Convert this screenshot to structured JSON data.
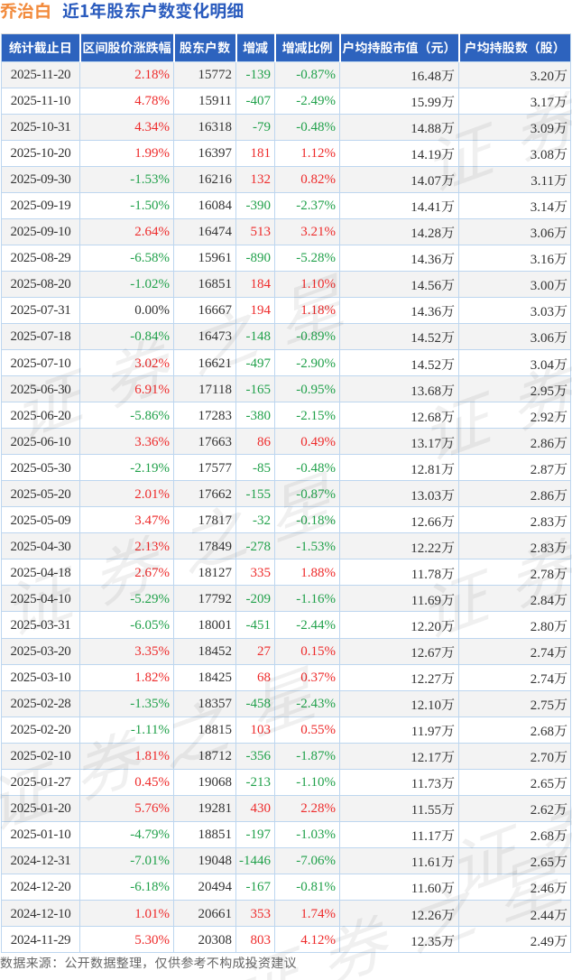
{
  "title": {
    "stock_name": "乔治白",
    "subtitle": "近1年股东户数变化明细"
  },
  "watermark": {
    "text": "证券之星"
  },
  "table": {
    "headers": [
      "统计截止日",
      "区间股价涨跌幅",
      "股东户数",
      "增减",
      "增减比例",
      "户均持股市值（元）",
      "户均持股数（股）"
    ],
    "rows": [
      [
        "2025-11-20",
        "2.18%",
        "15772",
        "-139",
        "-0.87%",
        "16.48万",
        "3.20万"
      ],
      [
        "2025-11-10",
        "4.78%",
        "15911",
        "-407",
        "-2.49%",
        "15.99万",
        "3.17万"
      ],
      [
        "2025-10-31",
        "4.34%",
        "16318",
        "-79",
        "-0.48%",
        "14.88万",
        "3.09万"
      ],
      [
        "2025-10-20",
        "1.99%",
        "16397",
        "181",
        "1.12%",
        "14.19万",
        "3.08万"
      ],
      [
        "2025-09-30",
        "-1.53%",
        "16216",
        "132",
        "0.82%",
        "14.07万",
        "3.11万"
      ],
      [
        "2025-09-19",
        "-1.50%",
        "16084",
        "-390",
        "-2.37%",
        "14.41万",
        "3.14万"
      ],
      [
        "2025-09-10",
        "2.64%",
        "16474",
        "513",
        "3.21%",
        "14.28万",
        "3.06万"
      ],
      [
        "2025-08-29",
        "-6.58%",
        "15961",
        "-890",
        "-5.28%",
        "14.36万",
        "3.16万"
      ],
      [
        "2025-08-20",
        "-1.02%",
        "16851",
        "184",
        "1.10%",
        "14.56万",
        "3.00万"
      ],
      [
        "2025-07-31",
        "0.00%",
        "16667",
        "194",
        "1.18%",
        "14.36万",
        "3.03万"
      ],
      [
        "2025-07-18",
        "-0.84%",
        "16473",
        "-148",
        "-0.89%",
        "14.52万",
        "3.06万"
      ],
      [
        "2025-07-10",
        "3.02%",
        "16621",
        "-497",
        "-2.90%",
        "14.52万",
        "3.04万"
      ],
      [
        "2025-06-30",
        "6.91%",
        "17118",
        "-165",
        "-0.95%",
        "13.68万",
        "2.95万"
      ],
      [
        "2025-06-20",
        "-5.86%",
        "17283",
        "-380",
        "-2.15%",
        "12.68万",
        "2.92万"
      ],
      [
        "2025-06-10",
        "3.36%",
        "17663",
        "86",
        "0.49%",
        "13.17万",
        "2.86万"
      ],
      [
        "2025-05-30",
        "-2.19%",
        "17577",
        "-85",
        "-0.48%",
        "12.81万",
        "2.87万"
      ],
      [
        "2025-05-20",
        "2.01%",
        "17662",
        "-155",
        "-0.87%",
        "13.03万",
        "2.86万"
      ],
      [
        "2025-05-09",
        "3.47%",
        "17817",
        "-32",
        "-0.18%",
        "12.66万",
        "2.83万"
      ],
      [
        "2025-04-30",
        "2.13%",
        "17849",
        "-278",
        "-1.53%",
        "12.22万",
        "2.83万"
      ],
      [
        "2025-04-18",
        "2.67%",
        "18127",
        "335",
        "1.88%",
        "11.78万",
        "2.78万"
      ],
      [
        "2025-04-10",
        "-5.29%",
        "17792",
        "-209",
        "-1.16%",
        "11.69万",
        "2.84万"
      ],
      [
        "2025-03-31",
        "-6.05%",
        "18001",
        "-451",
        "-2.44%",
        "12.20万",
        "2.80万"
      ],
      [
        "2025-03-20",
        "3.35%",
        "18452",
        "27",
        "0.15%",
        "12.67万",
        "2.74万"
      ],
      [
        "2025-03-10",
        "1.82%",
        "18425",
        "68",
        "0.37%",
        "12.27万",
        "2.74万"
      ],
      [
        "2025-02-28",
        "-1.35%",
        "18357",
        "-458",
        "-2.43%",
        "12.10万",
        "2.75万"
      ],
      [
        "2025-02-20",
        "-1.11%",
        "18815",
        "103",
        "0.55%",
        "11.97万",
        "2.68万"
      ],
      [
        "2025-02-10",
        "1.81%",
        "18712",
        "-356",
        "-1.87%",
        "12.17万",
        "2.70万"
      ],
      [
        "2025-01-27",
        "0.45%",
        "19068",
        "-213",
        "-1.10%",
        "11.73万",
        "2.65万"
      ],
      [
        "2025-01-20",
        "5.76%",
        "19281",
        "430",
        "2.28%",
        "11.55万",
        "2.62万"
      ],
      [
        "2025-01-10",
        "-4.79%",
        "18851",
        "-197",
        "-1.03%",
        "11.17万",
        "2.68万"
      ],
      [
        "2024-12-31",
        "-7.01%",
        "19048",
        "-1446",
        "-7.06%",
        "11.61万",
        "2.65万"
      ],
      [
        "2024-12-20",
        "-6.18%",
        "20494",
        "-167",
        "-0.81%",
        "11.60万",
        "2.46万"
      ],
      [
        "2024-12-10",
        "1.01%",
        "20661",
        "353",
        "1.74%",
        "12.26万",
        "2.44万"
      ],
      [
        "2024-11-29",
        "5.30%",
        "20308",
        "803",
        "4.12%",
        "12.35万",
        "2.49万"
      ]
    ]
  },
  "footer": {
    "text": "数据来源：公开数据整理，仅供参考不构成投资建议"
  },
  "colors": {
    "up": "#ee2b2b",
    "down": "#21a14b",
    "neutral": "#333333",
    "header_bg": "#2d63be",
    "title_stock": "#f28b3d",
    "title_subtitle": "#2b5cbe",
    "border": "#bdd6ef",
    "row_alt_bg": "#f3f3f3",
    "footer_text": "#666666"
  },
  "chart_data": {
    "type": "table",
    "title": "乔治白 近1年股东户数变化明细",
    "columns": [
      "统计截止日",
      "区间股价涨跌幅",
      "股东户数",
      "增减",
      "增减比例",
      "户均持股市值（元）",
      "户均持股数（股）"
    ],
    "rows": [
      [
        "2025-11-20",
        "2.18%",
        "15772",
        "-139",
        "-0.87%",
        "16.48万",
        "3.20万"
      ],
      [
        "2025-11-10",
        "4.78%",
        "15911",
        "-407",
        "-2.49%",
        "15.99万",
        "3.17万"
      ],
      [
        "2025-10-31",
        "4.34%",
        "16318",
        "-79",
        "-0.48%",
        "14.88万",
        "3.09万"
      ],
      [
        "2025-10-20",
        "1.99%",
        "16397",
        "181",
        "1.12%",
        "14.19万",
        "3.08万"
      ],
      [
        "2025-09-30",
        "-1.53%",
        "16216",
        "132",
        "0.82%",
        "14.07万",
        "3.11万"
      ],
      [
        "2025-09-19",
        "-1.50%",
        "16084",
        "-390",
        "-2.37%",
        "14.41万",
        "3.14万"
      ],
      [
        "2025-09-10",
        "2.64%",
        "16474",
        "513",
        "3.21%",
        "14.28万",
        "3.06万"
      ],
      [
        "2025-08-29",
        "-6.58%",
        "15961",
        "-890",
        "-5.28%",
        "14.36万",
        "3.16万"
      ],
      [
        "2025-08-20",
        "-1.02%",
        "16851",
        "184",
        "1.10%",
        "14.56万",
        "3.00万"
      ],
      [
        "2025-07-31",
        "0.00%",
        "16667",
        "194",
        "1.18%",
        "14.36万",
        "3.03万"
      ],
      [
        "2025-07-18",
        "-0.84%",
        "16473",
        "-148",
        "-0.89%",
        "14.52万",
        "3.06万"
      ],
      [
        "2025-07-10",
        "3.02%",
        "16621",
        "-497",
        "-2.90%",
        "14.52万",
        "3.04万"
      ],
      [
        "2025-06-30",
        "6.91%",
        "17118",
        "-165",
        "-0.95%",
        "13.68万",
        "2.95万"
      ],
      [
        "2025-06-20",
        "-5.86%",
        "17283",
        "-380",
        "-2.15%",
        "12.68万",
        "2.92万"
      ],
      [
        "2025-06-10",
        "3.36%",
        "17663",
        "86",
        "0.49%",
        "13.17万",
        "2.86万"
      ],
      [
        "2025-05-30",
        "-2.19%",
        "17577",
        "-85",
        "-0.48%",
        "12.81万",
        "2.87万"
      ],
      [
        "2025-05-20",
        "2.01%",
        "17662",
        "-155",
        "-0.87%",
        "13.03万",
        "2.86万"
      ],
      [
        "2025-05-09",
        "3.47%",
        "17817",
        "-32",
        "-0.18%",
        "12.66万",
        "2.83万"
      ],
      [
        "2025-04-30",
        "2.13%",
        "17849",
        "-278",
        "-1.53%",
        "12.22万",
        "2.83万"
      ],
      [
        "2025-04-18",
        "2.67%",
        "18127",
        "335",
        "1.88%",
        "11.78万",
        "2.78万"
      ],
      [
        "2025-04-10",
        "-5.29%",
        "17792",
        "-209",
        "-1.16%",
        "11.69万",
        "2.84万"
      ],
      [
        "2025-03-31",
        "-6.05%",
        "18001",
        "-451",
        "-2.44%",
        "12.20万",
        "2.80万"
      ],
      [
        "2025-03-20",
        "3.35%",
        "18452",
        "27",
        "0.15%",
        "12.67万",
        "2.74万"
      ],
      [
        "2025-03-10",
        "1.82%",
        "18425",
        "68",
        "0.37%",
        "12.27万",
        "2.74万"
      ],
      [
        "2025-02-28",
        "-1.35%",
        "18357",
        "-458",
        "-2.43%",
        "12.10万",
        "2.75万"
      ],
      [
        "2025-02-20",
        "-1.11%",
        "18815",
        "103",
        "0.55%",
        "11.97万",
        "2.68万"
      ],
      [
        "2025-02-10",
        "1.81%",
        "18712",
        "-356",
        "-1.87%",
        "12.17万",
        "2.70万"
      ],
      [
        "2025-01-27",
        "0.45%",
        "19068",
        "-213",
        "-1.10%",
        "11.73万",
        "2.65万"
      ],
      [
        "2025-01-20",
        "5.76%",
        "19281",
        "430",
        "2.28%",
        "11.55万",
        "2.62万"
      ],
      [
        "2025-01-10",
        "-4.79%",
        "18851",
        "-197",
        "-1.03%",
        "11.17万",
        "2.68万"
      ],
      [
        "2024-12-31",
        "-7.01%",
        "19048",
        "-1446",
        "-7.06%",
        "11.61万",
        "2.65万"
      ],
      [
        "2024-12-20",
        "-6.18%",
        "20494",
        "-167",
        "-0.81%",
        "11.60万",
        "2.46万"
      ],
      [
        "2024-12-10",
        "1.01%",
        "20661",
        "353",
        "1.74%",
        "12.26万",
        "2.44万"
      ],
      [
        "2024-11-29",
        "5.30%",
        "20308",
        "803",
        "4.12%",
        "12.35万",
        "2.49万"
      ]
    ]
  }
}
